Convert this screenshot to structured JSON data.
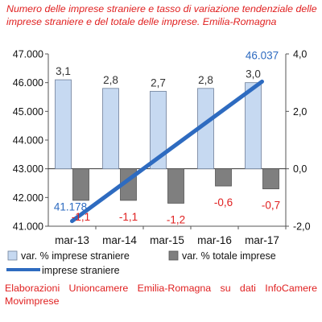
{
  "title": "Numero delle imprese straniere e tasso di variazione tendenziale delle imprese straniere e del totale delle imprese. Emilia-Romagna",
  "source": "Elaborazioni Unioncamere Emilia-Romagna su dati InfoCamere Movimprese",
  "chart_data": {
    "type": "bar",
    "title": "Numero delle imprese straniere e tasso di variazione tendenziale delle imprese straniere e del totale delle imprese. Emilia-Romagna",
    "categories": [
      "mar-13",
      "mar-14",
      "mar-15",
      "mar-16",
      "mar-17"
    ],
    "left_axis": {
      "min": 41000,
      "max": 47000,
      "ticks": [
        "41.000",
        "42.000",
        "43.000",
        "44.000",
        "45.000",
        "46.000",
        "47.000"
      ]
    },
    "right_axis": {
      "min": -2,
      "max": 4,
      "ticks": [
        "-2,0",
        "0,0",
        "2,0",
        "4,0"
      ]
    },
    "series": [
      {
        "name": "var. % imprese straniere",
        "kind": "bar",
        "axis": "right",
        "color": "#c6d9f1",
        "label_color": "#333333",
        "values": [
          3.1,
          2.8,
          2.7,
          2.8,
          3.0
        ],
        "labels": [
          "3,1",
          "2,8",
          "2,7",
          "2,8",
          "3,0"
        ]
      },
      {
        "name": "var. % totale imprese",
        "kind": "bar",
        "axis": "right",
        "color": "#7f7f7f",
        "label_color": "#e02020",
        "values": [
          -1.1,
          -1.1,
          -1.2,
          -0.6,
          -0.7
        ],
        "labels": [
          "-1,1",
          "-1,1",
          "-1,2",
          "-0,6",
          "-0,7"
        ]
      },
      {
        "name": "imprese straniere",
        "kind": "line",
        "axis": "left",
        "color": "#2e6bc0",
        "start_value": 41178,
        "end_value": 46037,
        "start_label": "41.178",
        "end_label": "46.037"
      }
    ],
    "legend": "bottom",
    "grid": false
  }
}
